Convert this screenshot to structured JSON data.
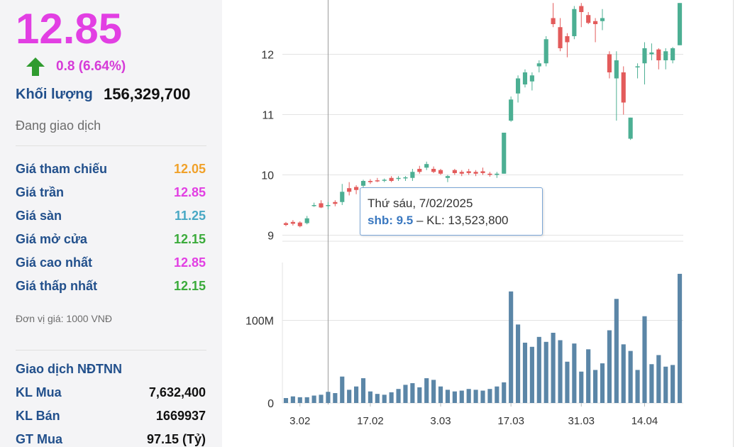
{
  "quote": {
    "price": "12.85",
    "change": "0.8 (6.64%)",
    "volume_label": "Khối lượng",
    "volume_value": "156,329,700",
    "status": "Đang giao dịch"
  },
  "price_rows": [
    {
      "label": "Giá tham chiếu",
      "value": "12.05",
      "color": "#f0a12a"
    },
    {
      "label": "Giá trần",
      "value": "12.85",
      "color": "#e23fe3"
    },
    {
      "label": "Giá sàn",
      "value": "11.25",
      "color": "#49a8c4"
    },
    {
      "label": "Giá mở cửa",
      "value": "12.15",
      "color": "#3bab3b"
    },
    {
      "label": "Giá cao nhất",
      "value": "12.85",
      "color": "#e23fe3"
    },
    {
      "label": "Giá thấp nhất",
      "value": "12.15",
      "color": "#3bab3b"
    }
  ],
  "unit_note": "Đơn vị giá: 1000 VNĐ",
  "foreign": {
    "title": "Giao dịch NĐTNN",
    "rows": [
      {
        "label": "KL Mua",
        "value": "7,632,400"
      },
      {
        "label": "KL Bán",
        "value": "1669937"
      },
      {
        "label": "GT Mua",
        "value": "97.15 (Tỷ)"
      }
    ]
  },
  "colors": {
    "up": "#4caf93",
    "down": "#e35b5b",
    "volume": "#5b86a7",
    "grid": "#e3e3e3",
    "crosshair": "#9a9a9a"
  },
  "tooltip": {
    "date": "Thứ sáu, 7/02/2025",
    "symbol_value": "shb: 9.5",
    "rest": " – KL: 13,523,800"
  },
  "chart_data": {
    "type": "candlestick",
    "price_ticks": [
      "9",
      "10",
      "11",
      "12"
    ],
    "price_range": [
      8.9,
      12.9
    ],
    "volume_ticks": [
      "0",
      "100M"
    ],
    "volume_range": [
      0,
      170000000
    ],
    "x_tick_labels": [
      {
        "label": "3.02",
        "index": 2
      },
      {
        "label": "17.02",
        "index": 12
      },
      {
        "label": "3.03",
        "index": 22
      },
      {
        "label": "17.03",
        "index": 32
      },
      {
        "label": "31.03",
        "index": 42
      },
      {
        "label": "14.04",
        "index": 51
      }
    ],
    "hover_index": 6,
    "candles": [
      {
        "o": 9.2,
        "h": 9.22,
        "l": 9.15,
        "c": 9.17,
        "v": 6000000
      },
      {
        "o": 9.22,
        "h": 9.25,
        "l": 9.16,
        "c": 9.19,
        "v": 8000000
      },
      {
        "o": 9.21,
        "h": 9.23,
        "l": 9.13,
        "c": 9.15,
        "v": 7000000
      },
      {
        "o": 9.2,
        "h": 9.32,
        "l": 9.18,
        "c": 9.28,
        "v": 7000000
      },
      {
        "o": 9.5,
        "h": 9.54,
        "l": 9.47,
        "c": 9.5,
        "v": 9000000
      },
      {
        "o": 9.53,
        "h": 9.58,
        "l": 9.45,
        "c": 9.46,
        "v": 10000000
      },
      {
        "o": 9.5,
        "h": 9.55,
        "l": 9.43,
        "c": 9.5,
        "v": 13523800
      },
      {
        "o": 9.55,
        "h": 9.58,
        "l": 9.48,
        "c": 9.52,
        "v": 12000000
      },
      {
        "o": 9.55,
        "h": 9.85,
        "l": 9.5,
        "c": 9.72,
        "v": 32000000
      },
      {
        "o": 9.78,
        "h": 9.88,
        "l": 9.66,
        "c": 9.72,
        "v": 16000000
      },
      {
        "o": 9.8,
        "h": 9.83,
        "l": 9.68,
        "c": 9.75,
        "v": 20000000
      },
      {
        "o": 9.82,
        "h": 9.92,
        "l": 9.78,
        "c": 9.9,
        "v": 30000000
      },
      {
        "o": 9.9,
        "h": 9.93,
        "l": 9.85,
        "c": 9.88,
        "v": 14000000
      },
      {
        "o": 9.91,
        "h": 9.95,
        "l": 9.88,
        "c": 9.9,
        "v": 11000000
      },
      {
        "o": 9.92,
        "h": 9.94,
        "l": 9.88,
        "c": 9.92,
        "v": 10000000
      },
      {
        "o": 9.95,
        "h": 9.98,
        "l": 9.88,
        "c": 9.9,
        "v": 13000000
      },
      {
        "o": 9.95,
        "h": 9.98,
        "l": 9.9,
        "c": 9.95,
        "v": 17000000
      },
      {
        "o": 9.95,
        "h": 9.98,
        "l": 9.9,
        "c": 9.96,
        "v": 22000000
      },
      {
        "o": 9.95,
        "h": 10.1,
        "l": 9.9,
        "c": 10.05,
        "v": 24000000
      },
      {
        "o": 10.1,
        "h": 10.15,
        "l": 10.02,
        "c": 10.05,
        "v": 19000000
      },
      {
        "o": 10.12,
        "h": 10.22,
        "l": 10.08,
        "c": 10.18,
        "v": 30000000
      },
      {
        "o": 10.1,
        "h": 10.14,
        "l": 10.03,
        "c": 10.05,
        "v": 28000000
      },
      {
        "o": 10.08,
        "h": 10.1,
        "l": 10.0,
        "c": 10.02,
        "v": 20000000
      },
      {
        "o": 9.95,
        "h": 10.0,
        "l": 9.88,
        "c": 9.98,
        "v": 16000000
      },
      {
        "o": 10.08,
        "h": 10.1,
        "l": 10.0,
        "c": 10.03,
        "v": 14000000
      },
      {
        "o": 10.05,
        "h": 10.08,
        "l": 9.98,
        "c": 10.02,
        "v": 15000000
      },
      {
        "o": 10.06,
        "h": 10.1,
        "l": 10.0,
        "c": 10.03,
        "v": 17000000
      },
      {
        "o": 10.05,
        "h": 10.08,
        "l": 9.98,
        "c": 10.02,
        "v": 16000000
      },
      {
        "o": 10.06,
        "h": 10.12,
        "l": 10.0,
        "c": 10.03,
        "v": 15000000
      },
      {
        "o": 10.02,
        "h": 10.05,
        "l": 9.97,
        "c": 10.0,
        "v": 17000000
      },
      {
        "o": 10.0,
        "h": 10.05,
        "l": 9.95,
        "c": 10.02,
        "v": 20000000
      },
      {
        "o": 10.02,
        "h": 10.7,
        "l": 10.02,
        "c": 10.7,
        "v": 25000000
      },
      {
        "o": 10.9,
        "h": 11.3,
        "l": 10.88,
        "c": 11.25,
        "v": 135000000
      },
      {
        "o": 11.35,
        "h": 11.65,
        "l": 11.2,
        "c": 11.6,
        "v": 95000000
      },
      {
        "o": 11.5,
        "h": 11.75,
        "l": 11.45,
        "c": 11.7,
        "v": 73000000
      },
      {
        "o": 11.55,
        "h": 11.7,
        "l": 11.4,
        "c": 11.65,
        "v": 68000000
      },
      {
        "o": 11.8,
        "h": 11.9,
        "l": 11.7,
        "c": 11.85,
        "v": 80000000
      },
      {
        "o": 11.85,
        "h": 12.3,
        "l": 11.8,
        "c": 12.25,
        "v": 74000000
      },
      {
        "o": 12.6,
        "h": 12.85,
        "l": 12.45,
        "c": 12.5,
        "v": 85000000
      },
      {
        "o": 12.45,
        "h": 12.6,
        "l": 12.05,
        "c": 12.1,
        "v": 76000000
      },
      {
        "o": 12.3,
        "h": 12.35,
        "l": 11.95,
        "c": 12.2,
        "v": 50000000
      },
      {
        "o": 12.3,
        "h": 12.8,
        "l": 12.25,
        "c": 12.75,
        "v": 72000000
      },
      {
        "o": 12.8,
        "h": 12.85,
        "l": 12.45,
        "c": 12.7,
        "v": 38000000
      },
      {
        "o": 12.65,
        "h": 12.7,
        "l": 12.5,
        "c": 12.52,
        "v": 65000000
      },
      {
        "o": 12.55,
        "h": 12.6,
        "l": 12.2,
        "c": 12.5,
        "v": 40000000
      },
      {
        "o": 12.55,
        "h": 12.75,
        "l": 12.4,
        "c": 12.6,
        "v": 48000000
      },
      {
        "o": 12.0,
        "h": 12.05,
        "l": 11.6,
        "c": 11.7,
        "v": 88000000
      },
      {
        "o": 11.6,
        "h": 12.05,
        "l": 10.9,
        "c": 11.9,
        "v": 126000000
      },
      {
        "o": 11.7,
        "h": 11.8,
        "l": 11.0,
        "c": 11.2,
        "v": 71000000
      },
      {
        "o": 10.6,
        "h": 10.95,
        "l": 10.58,
        "c": 10.95,
        "v": 63000000
      },
      {
        "o": 11.8,
        "h": 11.85,
        "l": 11.6,
        "c": 11.8,
        "v": 40000000
      },
      {
        "o": 11.85,
        "h": 12.2,
        "l": 11.5,
        "c": 12.1,
        "v": 105000000
      },
      {
        "o": 12.0,
        "h": 12.18,
        "l": 11.9,
        "c": 12.03,
        "v": 47000000
      },
      {
        "o": 12.08,
        "h": 12.1,
        "l": 11.75,
        "c": 11.9,
        "v": 58000000
      },
      {
        "o": 11.9,
        "h": 12.1,
        "l": 11.75,
        "c": 12.05,
        "v": 44000000
      },
      {
        "o": 11.9,
        "h": 12.12,
        "l": 11.85,
        "c": 12.1,
        "v": 46000000
      },
      {
        "o": 12.15,
        "h": 12.85,
        "l": 12.15,
        "c": 12.85,
        "v": 156329700
      }
    ]
  }
}
